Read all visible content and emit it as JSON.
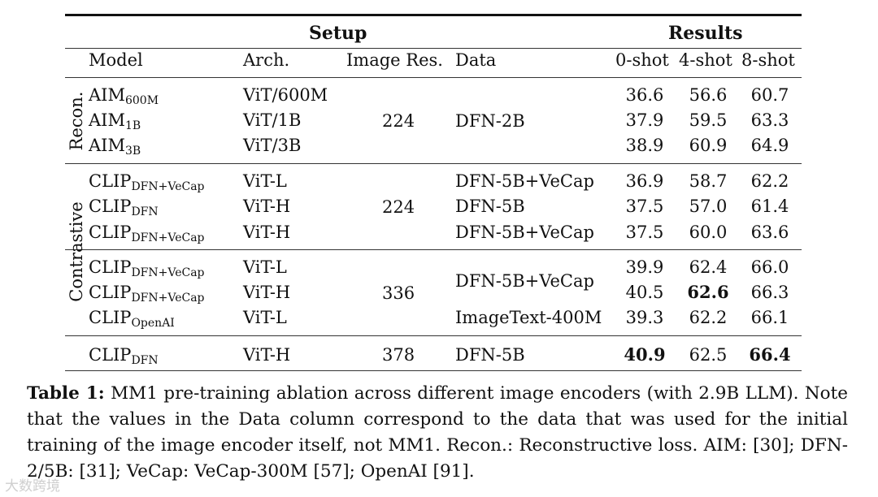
{
  "headers": {
    "setup": "Setup",
    "results": "Results",
    "model": "Model",
    "arch": "Arch.",
    "image_res": "Image Res.",
    "data": "Data",
    "zero_shot": "0-shot",
    "four_shot": "4-shot",
    "eight_shot": "8-shot"
  },
  "groups": [
    {
      "label": "Recon.",
      "res": "224",
      "data": "DFN-2B"
    },
    {
      "label": "Contrastive",
      "res": "224",
      "data": ""
    },
    {
      "label": "",
      "res": "336",
      "data": ""
    },
    {
      "label": "",
      "res": "378",
      "data": ""
    }
  ],
  "rows": [
    {
      "model": "AIM",
      "sub": "600M",
      "arch": "ViT/600M",
      "data": "",
      "s0": "36.6",
      "s4": "56.6",
      "s8": "60.7"
    },
    {
      "model": "AIM",
      "sub": "1B",
      "arch": "ViT/1B",
      "data": "",
      "s0": "37.9",
      "s4": "59.5",
      "s8": "63.3"
    },
    {
      "model": "AIM",
      "sub": "3B",
      "arch": "ViT/3B",
      "data": "",
      "s0": "38.9",
      "s4": "60.9",
      "s8": "64.9"
    },
    {
      "model": "CLIP",
      "sub": "DFN+VeCap",
      "arch": "ViT-L",
      "data": "DFN-5B+VeCap",
      "s0": "36.9",
      "s4": "58.7",
      "s8": "62.2"
    },
    {
      "model": "CLIP",
      "sub": "DFN",
      "arch": "ViT-H",
      "data": "DFN-5B",
      "s0": "37.5",
      "s4": "57.0",
      "s8": "61.4"
    },
    {
      "model": "CLIP",
      "sub": "DFN+VeCap",
      "arch": "ViT-H",
      "data": "DFN-5B+VeCap",
      "s0": "37.5",
      "s4": "60.0",
      "s8": "63.6"
    },
    {
      "model": "CLIP",
      "sub": "DFN+VeCap",
      "arch": "ViT-L",
      "data": "",
      "s0": "39.9",
      "s4": "62.4",
      "s8": "66.0"
    },
    {
      "model": "CLIP",
      "sub": "DFN+VeCap",
      "arch": "ViT-H",
      "data": "",
      "s0": "40.5",
      "s4": "62.6",
      "s8": "66.3"
    },
    {
      "model": "CLIP",
      "sub": "OpenAI",
      "arch": "ViT-L",
      "data": "ImageText-400M",
      "s0": "39.3",
      "s4": "62.2",
      "s8": "66.1"
    },
    {
      "model": "CLIP",
      "sub": "DFN",
      "arch": "ViT-H",
      "data": "DFN-5B",
      "s0": "40.9",
      "s4": "62.5",
      "s8": "66.4"
    }
  ],
  "merged_data": {
    "contrastive_336": "DFN-5B+VeCap"
  },
  "caption": {
    "label": "Table 1:",
    "text": " MM1 pre-training ablation across different image encoders (with 2.9B LLM). Note that the values in the Data column correspond to the data that was used for the initial training of the image encoder itself, not MM1. Recon.: Reconstructive loss. AIM: [30]; DFN-2/5B: [31]; VeCap: VeCap-300M [57]; OpenAI [91]."
  },
  "watermark": "大数跨境"
}
